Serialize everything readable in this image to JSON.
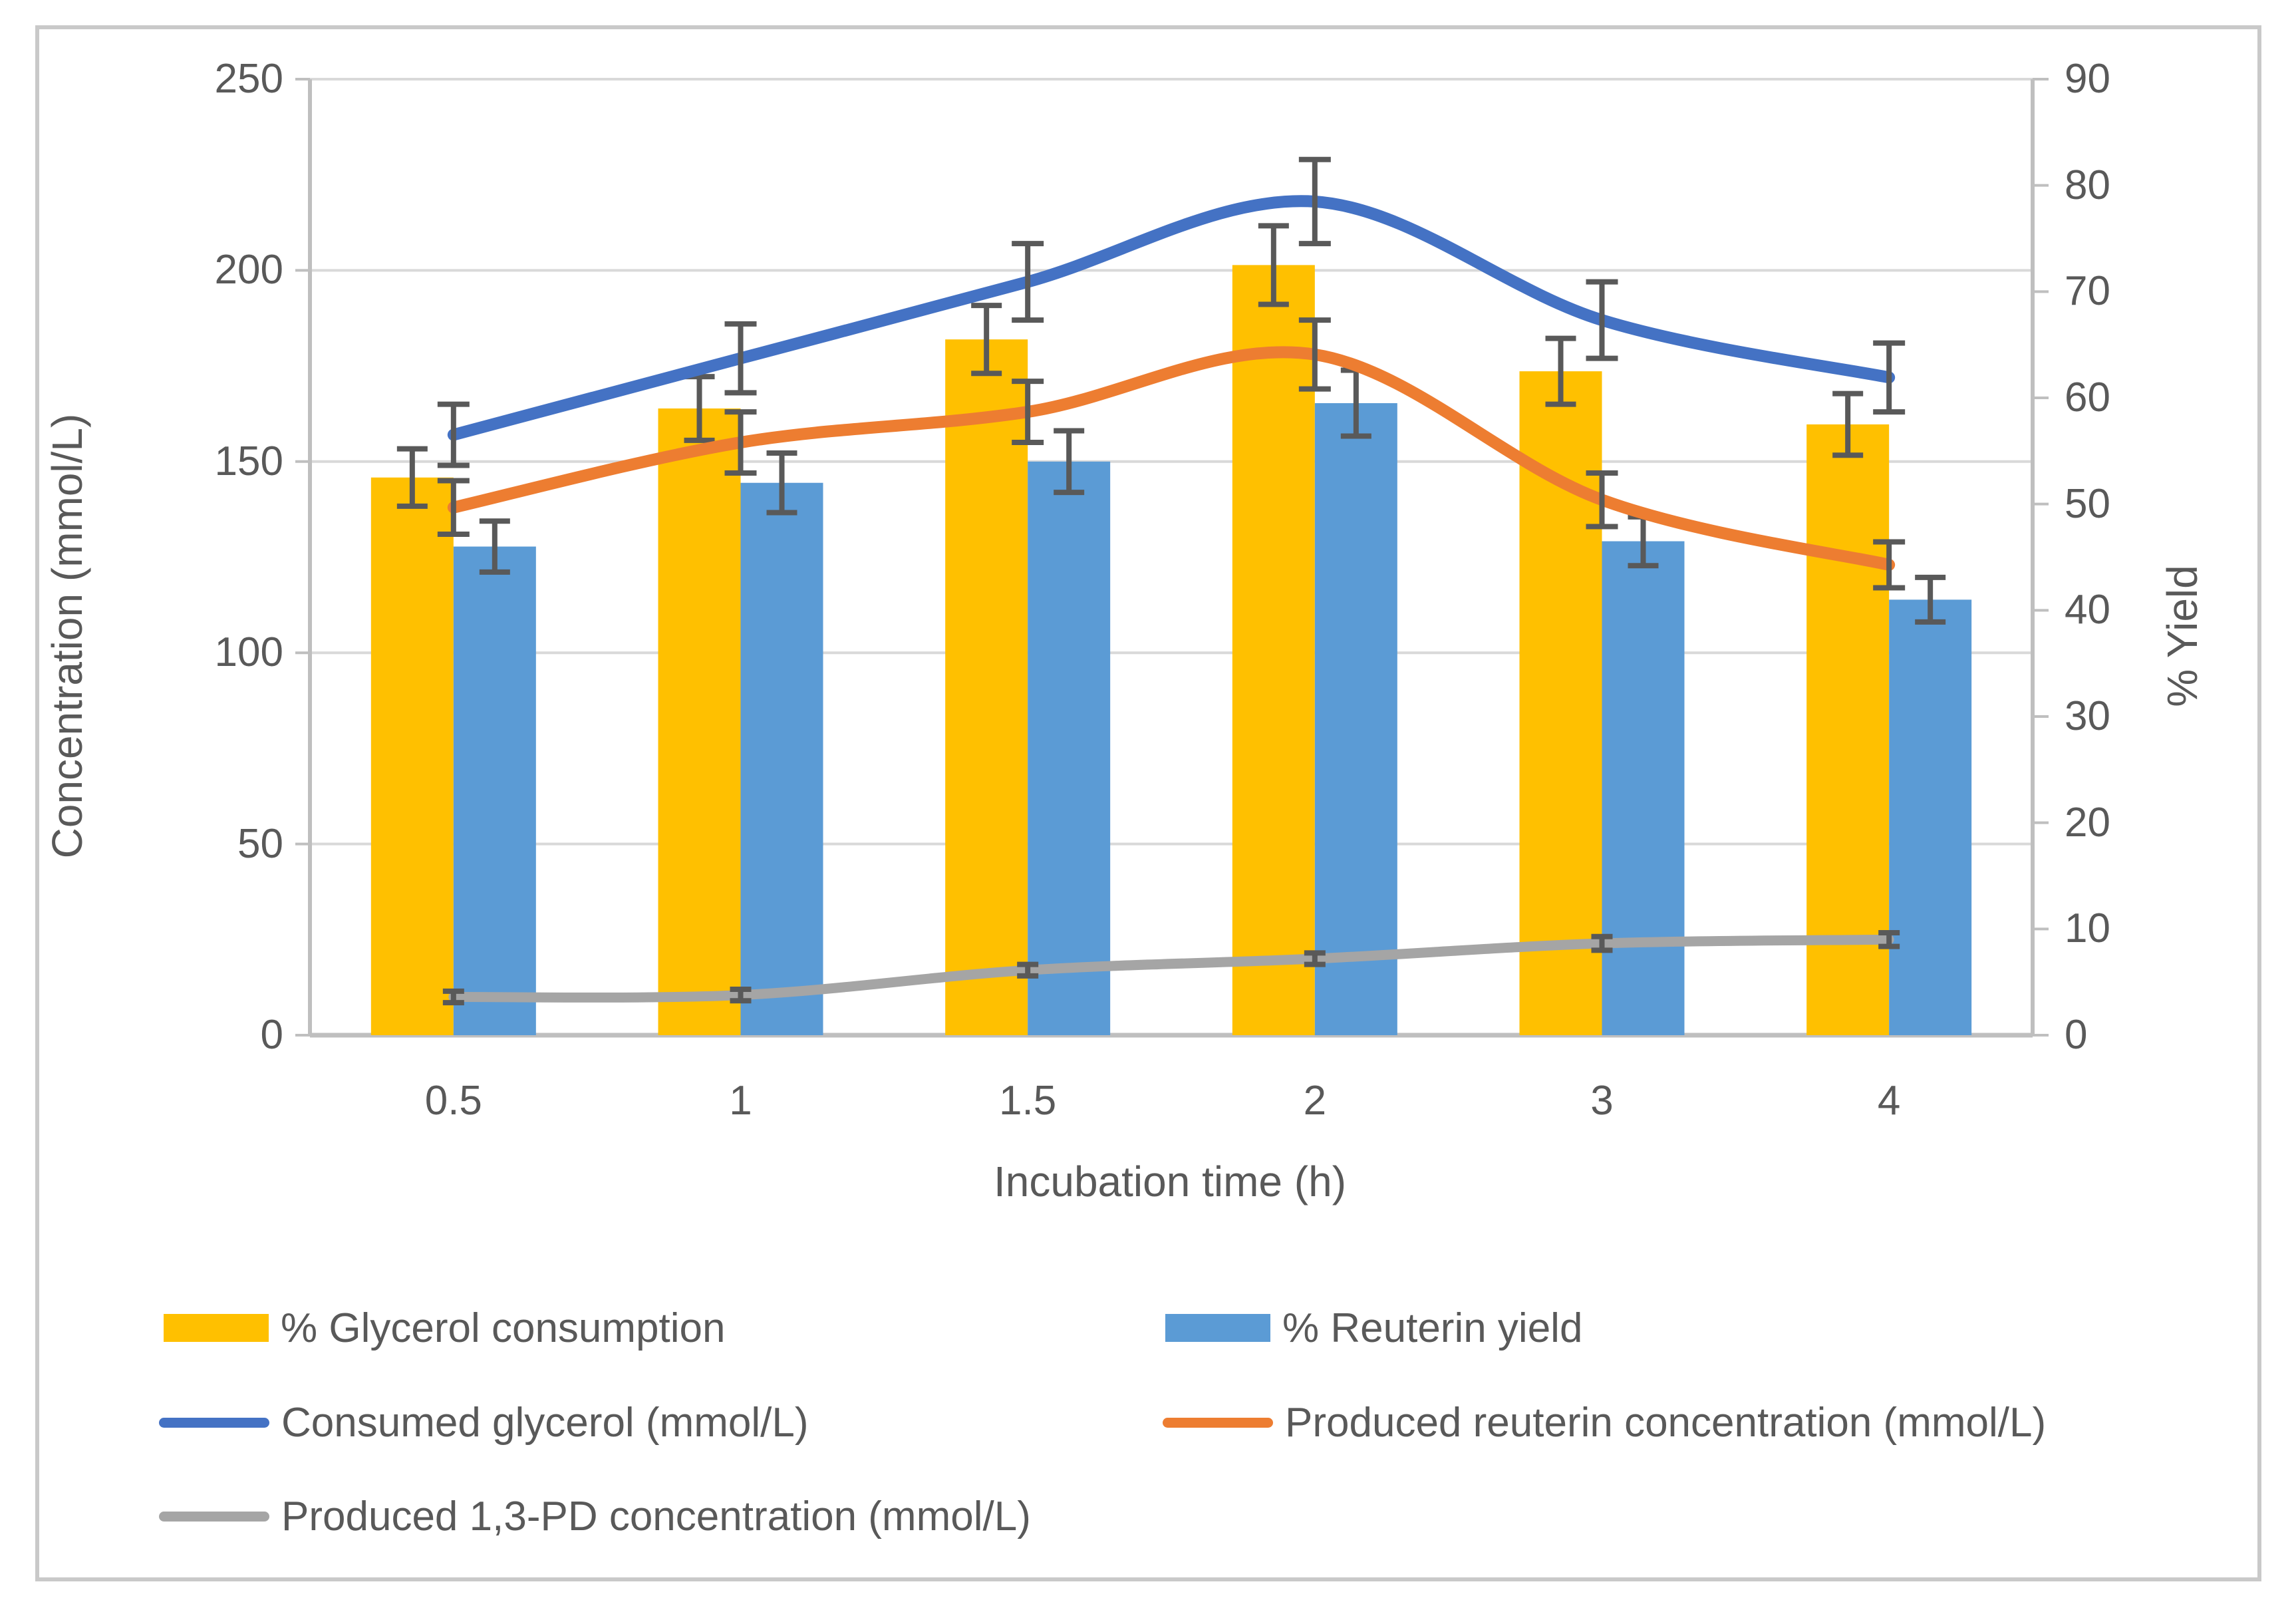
{
  "figure": {
    "background_color": "#ffffff",
    "border_color": "#c9c9c9",
    "gridline_color": "#d9d9d9",
    "axis_line_color": "#bfbfbf",
    "error_bar_color": "#595959",
    "text_color": "#595959"
  },
  "chart_data": {
    "type": "bar",
    "subtype": "combo-bar-line-dual-axis",
    "categories": [
      "0.5",
      "1",
      "1.5",
      "2",
      "3",
      "4"
    ],
    "x_axis": {
      "title": "Incubation time (h)"
    },
    "left_axis": {
      "title": "Concentration (mmol/L)",
      "min": 0,
      "max": 250,
      "ticks": [
        "0",
        "50",
        "100",
        "150",
        "200",
        "250"
      ],
      "tick_values": [
        0,
        50,
        100,
        150,
        200,
        250
      ]
    },
    "right_axis": {
      "title": "% Yield",
      "min": 0,
      "max": 90,
      "ticks": [
        "0",
        "10",
        "20",
        "30",
        "40",
        "50",
        "60",
        "70",
        "80",
        "90"
      ],
      "tick_values": [
        0,
        10,
        20,
        30,
        40,
        50,
        60,
        70,
        80,
        90
      ]
    },
    "grid": "horizontal-on",
    "legend_position": "bottom-left-two-columns",
    "bar_series": [
      {
        "name": "% Glycerol consumption",
        "color": "#FFC000",
        "axis": "right",
        "values": [
          52.5,
          59,
          65.5,
          72.5,
          62.5,
          57.5
        ],
        "errors": [
          2.7,
          3.0,
          3.2,
          3.7,
          3.1,
          2.9
        ]
      },
      {
        "name": "% Reuterin yield",
        "color": "#5B9BD5",
        "axis": "right",
        "values": [
          46,
          52,
          54,
          59.5,
          46.5,
          41
        ],
        "errors": [
          2.4,
          2.8,
          2.9,
          3.1,
          2.3,
          2.1
        ]
      }
    ],
    "line_series": [
      {
        "name": "Consumed glycerol (mmol/L)",
        "color": "#4472C4",
        "axis": "left",
        "width": 18,
        "values": [
          157,
          177,
          197,
          218,
          187,
          172
        ],
        "errors": [
          8,
          9,
          10,
          11,
          10,
          9
        ]
      },
      {
        "name": "Produced reuterin concentration (mmol/L)",
        "color": "#ED7D31",
        "axis": "left",
        "width": 18,
        "values": [
          138,
          155,
          163,
          178,
          140,
          123
        ],
        "errors": [
          7,
          8,
          8,
          9,
          7,
          6
        ]
      },
      {
        "name": "Produced 1,3-PD concentration (mmol/L)",
        "color": "#A5A5A5",
        "axis": "left",
        "width": 15,
        "values": [
          10,
          10.5,
          17,
          20,
          24,
          25
        ],
        "errors": [
          1.5,
          1.5,
          1.5,
          1.5,
          1.8,
          1.8
        ]
      }
    ]
  }
}
